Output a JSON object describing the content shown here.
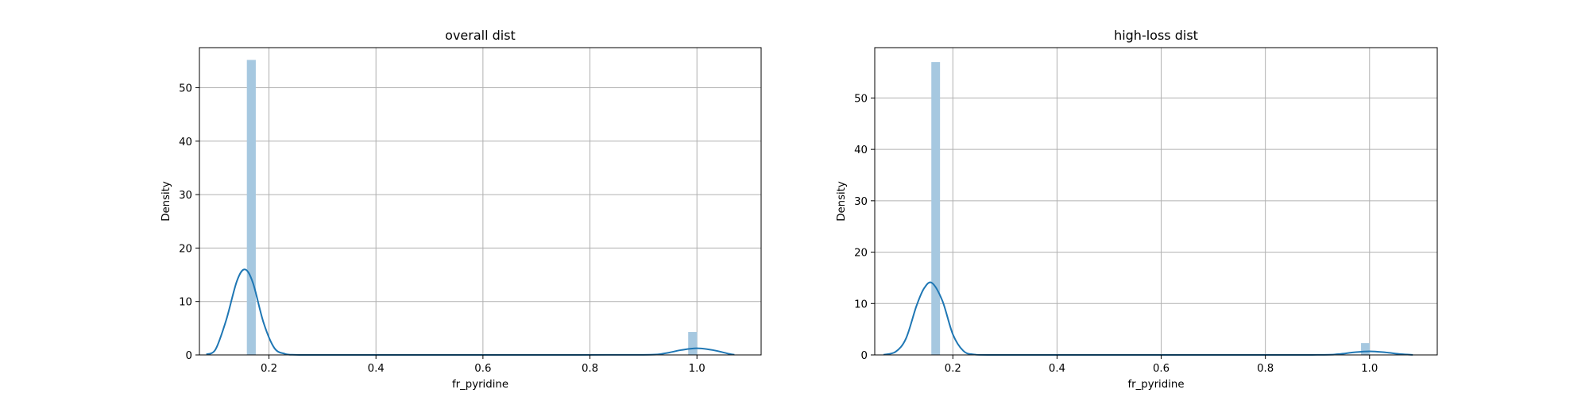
{
  "figure": {
    "background": "#ffffff",
    "hist_color": "#a6c8e0",
    "kde_color": "#1f77b4",
    "grid_color": "#b0b0b0"
  },
  "chart_data": [
    {
      "type": "bar",
      "subtype": "histogram_with_kde",
      "title": "overall dist",
      "xlabel": "fr_pyridine",
      "ylabel": "Density",
      "xlim": [
        0.07,
        1.12
      ],
      "ylim": [
        0,
        57.5
      ],
      "xticks": [
        0.2,
        0.4,
        0.6,
        0.8,
        1.0
      ],
      "xtick_labels": [
        "0.2",
        "0.4",
        "0.6",
        "0.8",
        "1.0"
      ],
      "yticks": [
        0,
        10,
        20,
        30,
        40,
        50
      ],
      "ytick_labels": [
        "0",
        "10",
        "20",
        "30",
        "40",
        "50"
      ],
      "grid": true,
      "histogram": {
        "bin_width": 0.0167,
        "bars": [
          {
            "x": 0.167,
            "density": 55.2
          },
          {
            "x": 0.992,
            "density": 4.3
          }
        ]
      },
      "kde": {
        "x": [
          0.083,
          0.1,
          0.12,
          0.14,
          0.155,
          0.17,
          0.19,
          0.21,
          0.23,
          0.25,
          0.3,
          0.5,
          0.7,
          0.9,
          0.94,
          0.97,
          1.0,
          1.03,
          1.06,
          1.07
        ],
        "y": [
          0.1,
          1.0,
          6.5,
          13.8,
          16.0,
          13.5,
          6.0,
          1.3,
          0.2,
          0.02,
          0,
          0,
          0,
          0.02,
          0.3,
          0.9,
          1.25,
          0.9,
          0.2,
          0.05
        ]
      }
    },
    {
      "type": "bar",
      "subtype": "histogram_with_kde",
      "title": "high-loss dist",
      "xlabel": "fr_pyridine",
      "ylabel": "Density",
      "xlim": [
        0.05,
        1.13
      ],
      "ylim": [
        0,
        59.8
      ],
      "xticks": [
        0.2,
        0.4,
        0.6,
        0.8,
        1.0
      ],
      "xtick_labels": [
        "0.2",
        "0.4",
        "0.6",
        "0.8",
        "1.0"
      ],
      "yticks": [
        0,
        10,
        20,
        30,
        40,
        50
      ],
      "ytick_labels": [
        "0",
        "10",
        "20",
        "30",
        "40",
        "50"
      ],
      "grid": true,
      "histogram": {
        "bin_width": 0.0167,
        "bars": [
          {
            "x": 0.167,
            "density": 57.0
          },
          {
            "x": 0.992,
            "density": 2.3
          }
        ]
      },
      "kde": {
        "x": [
          0.067,
          0.09,
          0.11,
          0.13,
          0.145,
          0.16,
          0.18,
          0.2,
          0.22,
          0.24,
          0.28,
          0.5,
          0.7,
          0.9,
          0.94,
          0.97,
          1.0,
          1.03,
          1.06,
          1.083
        ],
        "y": [
          0.05,
          0.6,
          3.2,
          9.5,
          13.0,
          14.0,
          10.5,
          4.0,
          0.8,
          0.1,
          0,
          0,
          0,
          0.01,
          0.15,
          0.5,
          0.7,
          0.5,
          0.15,
          0.02
        ]
      }
    }
  ]
}
